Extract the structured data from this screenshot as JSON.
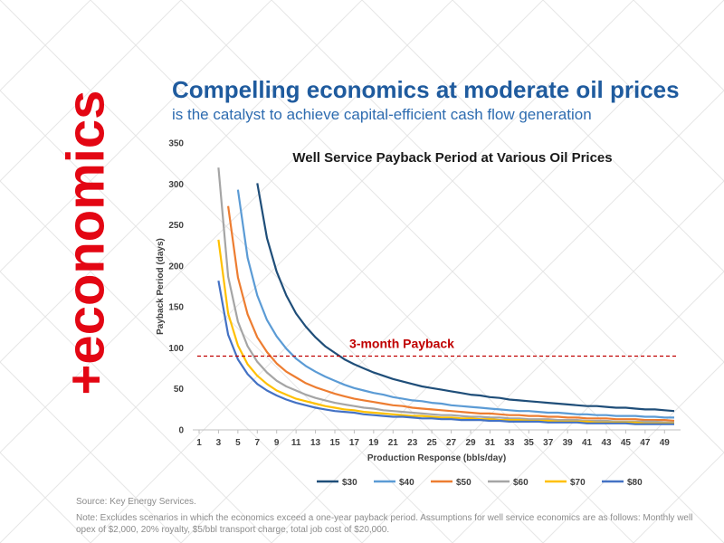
{
  "slide": {
    "side_word": "+economics",
    "headline": "Compelling economics at moderate oil prices",
    "subheadline": "is the catalyst to achieve capital-efficient cash flow generation",
    "source": "Source: Key Energy Services.",
    "note": "Note: Excludes scenarios in which the economics exceed a one-year payback period. Assumptions for well service economics are as follows: Monthly well opex of $2,000, 20% royalty, $5/bbl transport charge, total job cost of $20,000."
  },
  "colors": {
    "side_word": "#e30613",
    "headline": "#1f5b9e",
    "threshold": "#c00000"
  },
  "chart_data": {
    "type": "line",
    "title": "Well Service Payback Period at Various Oil Prices",
    "xlabel": "Production Response (bbls/day)",
    "ylabel": "Payback Period (days)",
    "ylim": [
      0,
      350
    ],
    "yticks": [
      0,
      50,
      100,
      150,
      200,
      250,
      300,
      350
    ],
    "xlim": [
      1,
      50
    ],
    "xticks": [
      1,
      3,
      5,
      7,
      9,
      11,
      13,
      15,
      17,
      19,
      21,
      23,
      25,
      27,
      29,
      31,
      33,
      35,
      37,
      39,
      41,
      43,
      45,
      47,
      49
    ],
    "grid": false,
    "legend": "bottom",
    "x": [
      3,
      4,
      5,
      6,
      7,
      8,
      9,
      10,
      11,
      12,
      13,
      14,
      15,
      16,
      17,
      18,
      19,
      20,
      21,
      22,
      23,
      24,
      25,
      26,
      27,
      28,
      29,
      30,
      31,
      32,
      33,
      34,
      35,
      36,
      37,
      38,
      39,
      40,
      41,
      42,
      43,
      44,
      45,
      46,
      47,
      48,
      49,
      50
    ],
    "series": [
      {
        "name": "$30",
        "color": "#1f4e79",
        "values": [
          null,
          null,
          null,
          null,
          301,
          234,
          193,
          164,
          142,
          126,
          113,
          102,
          94,
          86,
          80,
          75,
          70,
          66,
          62,
          59,
          56,
          53,
          51,
          49,
          47,
          45,
          43,
          42,
          40,
          39,
          37,
          36,
          35,
          34,
          33,
          32,
          31,
          30,
          29,
          29,
          28,
          27,
          27,
          26,
          25,
          25,
          24,
          23
        ]
      },
      {
        "name": "$40",
        "color": "#5b9bd5",
        "values": [
          null,
          null,
          293,
          210,
          164,
          134,
          114,
          99,
          87,
          78,
          71,
          65,
          60,
          55,
          51,
          48,
          45,
          43,
          40,
          38,
          36,
          35,
          33,
          32,
          30,
          29,
          28,
          27,
          26,
          25,
          24,
          23,
          23,
          22,
          21,
          21,
          20,
          19,
          19,
          18,
          18,
          17,
          17,
          17,
          16,
          16,
          15,
          15
        ]
      },
      {
        "name": "$50",
        "color": "#ed7d31",
        "values": [
          null,
          273,
          186,
          141,
          113,
          95,
          81,
          71,
          64,
          57,
          52,
          48,
          44,
          41,
          38,
          36,
          34,
          32,
          30,
          29,
          27,
          26,
          25,
          24,
          23,
          22,
          21,
          20,
          20,
          19,
          18,
          18,
          17,
          17,
          16,
          16,
          15,
          15,
          14,
          14,
          14,
          13,
          13,
          13,
          12,
          12,
          12,
          11
        ]
      },
      {
        "name": "$60",
        "color": "#a5a5a5",
        "values": [
          320,
          187,
          132,
          102,
          83,
          70,
          60,
          53,
          48,
          43,
          39,
          36,
          33,
          31,
          29,
          27,
          26,
          24,
          23,
          22,
          21,
          20,
          19,
          18,
          18,
          17,
          16,
          16,
          15,
          15,
          14,
          14,
          13,
          13,
          13,
          12,
          12,
          12,
          11,
          11,
          11,
          10,
          10,
          10,
          10,
          10,
          9,
          9
        ]
      },
      {
        "name": "$70",
        "color": "#ffc000",
        "values": [
          232,
          142,
          103,
          80,
          66,
          56,
          48,
          43,
          38,
          35,
          32,
          29,
          27,
          25,
          24,
          22,
          21,
          20,
          19,
          18,
          17,
          17,
          16,
          15,
          15,
          14,
          14,
          13,
          13,
          12,
          12,
          12,
          11,
          11,
          11,
          10,
          10,
          10,
          10,
          9,
          9,
          9,
          9,
          9,
          8,
          8,
          8,
          8
        ]
      },
      {
        "name": "$80",
        "color": "#4472c4",
        "values": [
          182,
          116,
          86,
          68,
          56,
          48,
          42,
          37,
          33,
          30,
          27,
          25,
          23,
          22,
          21,
          19,
          18,
          17,
          16,
          16,
          15,
          14,
          14,
          13,
          13,
          12,
          12,
          12,
          11,
          11,
          10,
          10,
          10,
          10,
          9,
          9,
          9,
          9,
          8,
          8,
          8,
          8,
          8,
          7,
          7,
          7,
          7,
          7
        ]
      }
    ],
    "annotations": [
      {
        "text": "3-month Payback",
        "y": 90,
        "style": "dashed",
        "color": "#c00000"
      }
    ]
  }
}
